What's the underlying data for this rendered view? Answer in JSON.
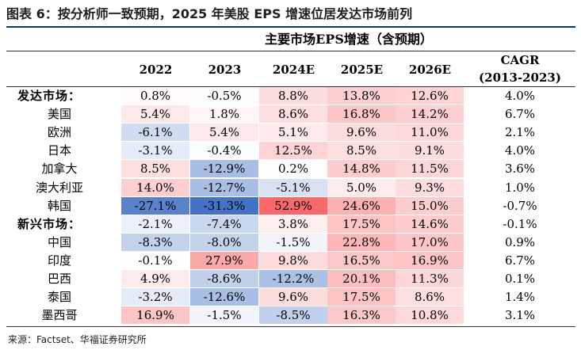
{
  "title": "图表 6：按分析师一致预期，2025 年美股 EPS 增速位居发达市场前列",
  "subtitle": "主要市场EPS增速（含预期）",
  "source": "来源：Factset、华福证券研究所",
  "chart_data": {
    "type": "table",
    "columns": [
      "2022",
      "2023",
      "2024E",
      "2025E",
      "2026E"
    ],
    "cagr_header": [
      "CAGR",
      "(2013-2023)"
    ],
    "rows": [
      {
        "label": "发达市场：",
        "group": true,
        "values": [
          0.8,
          -0.5,
          8.8,
          13.8,
          12.6
        ],
        "cagr": 4.0
      },
      {
        "label": "美国",
        "group": false,
        "values": [
          5.4,
          1.8,
          8.6,
          16.8,
          14.2
        ],
        "cagr": 6.7
      },
      {
        "label": "欧洲",
        "group": false,
        "values": [
          -6.1,
          5.4,
          5.1,
          9.6,
          11.0
        ],
        "cagr": 2.1
      },
      {
        "label": "日本",
        "group": false,
        "values": [
          -3.1,
          -0.4,
          12.5,
          8.5,
          9.1
        ],
        "cagr": 4.0
      },
      {
        "label": "加拿大",
        "group": false,
        "values": [
          8.5,
          -12.9,
          0.2,
          14.8,
          11.5
        ],
        "cagr": 3.6
      },
      {
        "label": "澳大利亚",
        "group": false,
        "values": [
          14.0,
          -12.7,
          -5.1,
          5.0,
          9.3
        ],
        "cagr": 1.0
      },
      {
        "label": "韩国",
        "group": false,
        "values": [
          -27.1,
          -31.3,
          52.9,
          24.6,
          15.0
        ],
        "cagr": -0.7
      },
      {
        "label": "新兴市场：",
        "group": true,
        "values": [
          -2.1,
          -7.4,
          3.8,
          17.5,
          14.6
        ],
        "cagr": -0.1
      },
      {
        "label": "中国",
        "group": false,
        "values": [
          -8.3,
          -8.0,
          -1.5,
          22.8,
          17.0
        ],
        "cagr": 0.9
      },
      {
        "label": "印度",
        "group": false,
        "values": [
          -0.1,
          27.9,
          9.8,
          16.5,
          16.9
        ],
        "cagr": 6.7
      },
      {
        "label": "巴西",
        "group": false,
        "values": [
          4.9,
          -8.6,
          -12.2,
          20.1,
          11.3
        ],
        "cagr": 0.1
      },
      {
        "label": "泰国",
        "group": false,
        "values": [
          -3.2,
          -12.6,
          9.6,
          17.5,
          8.6
        ],
        "cagr": 1.4
      },
      {
        "label": "墨西哥",
        "group": false,
        "values": [
          16.9,
          -1.5,
          -8.5,
          16.3,
          10.8
        ],
        "cagr": 3.1
      }
    ],
    "color_scale": {
      "negative": "#4472c4",
      "neutral": "#ffffff",
      "positive": "#f8696b"
    },
    "unit": "%"
  }
}
